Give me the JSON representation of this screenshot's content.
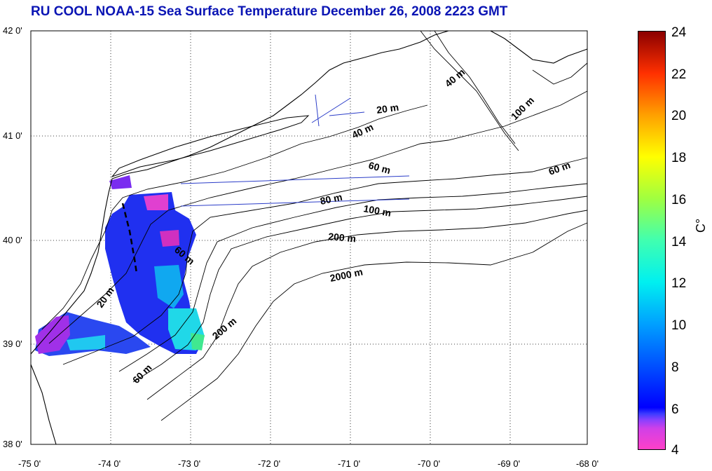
{
  "title": "RU COOL  NOAA-15 Sea Surface Temperature December 26, 2008 2223 GMT",
  "map": {
    "lon_range": [
      -75,
      -68
    ],
    "lat_range": [
      38,
      42
    ],
    "lon_ticks": [
      "-75 0'",
      "-74 0'",
      "-73 0'",
      "-72 0'",
      "-71 0'",
      "-70 0'",
      "-69 0'",
      "-68 0'"
    ],
    "lat_ticks": [
      "42 0'",
      "41 0'",
      "40 0'",
      "39 0'",
      "38 0'"
    ],
    "grid": "dotted",
    "contour_labels": [
      "40 m",
      "20 m",
      "40 m",
      "100 m",
      "60 m",
      "60 m",
      "80 m",
      "100 m",
      "200 m",
      "60 m",
      "2000 m",
      "20 m",
      "200 m",
      "60 m"
    ],
    "land_color": "#ffffff",
    "coast_color": "#000000",
    "ship_track_color": "#2a3cc8"
  },
  "colorbar": {
    "ticks": [
      "24",
      "22",
      "20",
      "18",
      "16",
      "14",
      "12",
      "10",
      "8",
      "6",
      "4"
    ],
    "range": [
      4,
      24
    ],
    "unit": "C°"
  }
}
